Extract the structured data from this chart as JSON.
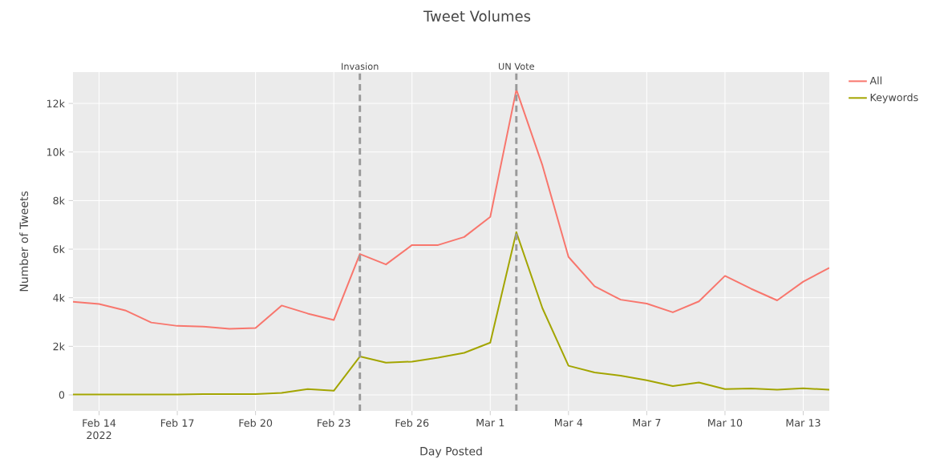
{
  "chart_data": {
    "type": "line",
    "title": "Tweet Volumes",
    "xlabel": "Day Posted",
    "ylabel": "Number of Tweets",
    "x": [
      "2022-02-13",
      "2022-02-14",
      "2022-02-15",
      "2022-02-16",
      "2022-02-17",
      "2022-02-18",
      "2022-02-19",
      "2022-02-20",
      "2022-02-21",
      "2022-02-22",
      "2022-02-23",
      "2022-02-24",
      "2022-02-25",
      "2022-02-26",
      "2022-02-27",
      "2022-02-28",
      "2022-03-01",
      "2022-03-02",
      "2022-03-03",
      "2022-03-04",
      "2022-03-05",
      "2022-03-06",
      "2022-03-07",
      "2022-03-08",
      "2022-03-09",
      "2022-03-10",
      "2022-03-11",
      "2022-03-12",
      "2022-03-13",
      "2022-03-14"
    ],
    "series": [
      {
        "name": "All",
        "color": "#f8766d",
        "values": [
          3830,
          3740,
          3480,
          2980,
          2840,
          2810,
          2720,
          2750,
          3680,
          3350,
          3080,
          5800,
          5370,
          6170,
          6170,
          6500,
          7330,
          12570,
          9450,
          5680,
          4470,
          3920,
          3760,
          3400,
          3850,
          4900,
          4370,
          3890,
          4660,
          5230
        ]
      },
      {
        "name": "Keywords",
        "color": "#a3a500",
        "values": [
          20,
          20,
          20,
          20,
          20,
          30,
          30,
          30,
          80,
          240,
          170,
          1580,
          1330,
          1370,
          1530,
          1730,
          2150,
          6700,
          3570,
          1200,
          920,
          790,
          600,
          360,
          510,
          240,
          260,
          210,
          270,
          210
        ]
      }
    ],
    "xlim": [
      "2022-02-13",
      "2022-03-14"
    ],
    "xticks": [
      {
        "value": "2022-02-14",
        "label": "Feb 14 2022"
      },
      {
        "value": "2022-02-17",
        "label": "Feb 17"
      },
      {
        "value": "2022-02-20",
        "label": "Feb 20"
      },
      {
        "value": "2022-02-23",
        "label": "Feb 23"
      },
      {
        "value": "2022-02-26",
        "label": "Feb 26"
      },
      {
        "value": "2022-03-01",
        "label": "Mar 1"
      },
      {
        "value": "2022-03-04",
        "label": "Mar 4"
      },
      {
        "value": "2022-03-07",
        "label": "Mar 7"
      },
      {
        "value": "2022-03-10",
        "label": "Mar 10"
      },
      {
        "value": "2022-03-13",
        "label": "Mar 13"
      }
    ],
    "ylim": [
      -660,
      13290
    ],
    "yticks": [
      0,
      {
        "value": 2000,
        "label": "2k"
      },
      {
        "value": 4000,
        "label": "4k"
      },
      {
        "value": 6000,
        "label": "6k"
      },
      {
        "value": 8000,
        "label": "8k"
      },
      {
        "value": 10000,
        "label": "10k"
      },
      {
        "value": 12000,
        "label": "12k"
      }
    ],
    "ref_lines": [
      {
        "axis": "x",
        "value": "2022-02-24",
        "label": "Invasion",
        "color": "#999999",
        "line_style": "dashed"
      },
      {
        "axis": "x",
        "value": "2022-03-02",
        "label": "UN Vote",
        "color": "#999999",
        "line_style": "dashed"
      }
    ],
    "grid": true,
    "legend": "top right",
    "marker": "none",
    "line_style": "solid"
  }
}
